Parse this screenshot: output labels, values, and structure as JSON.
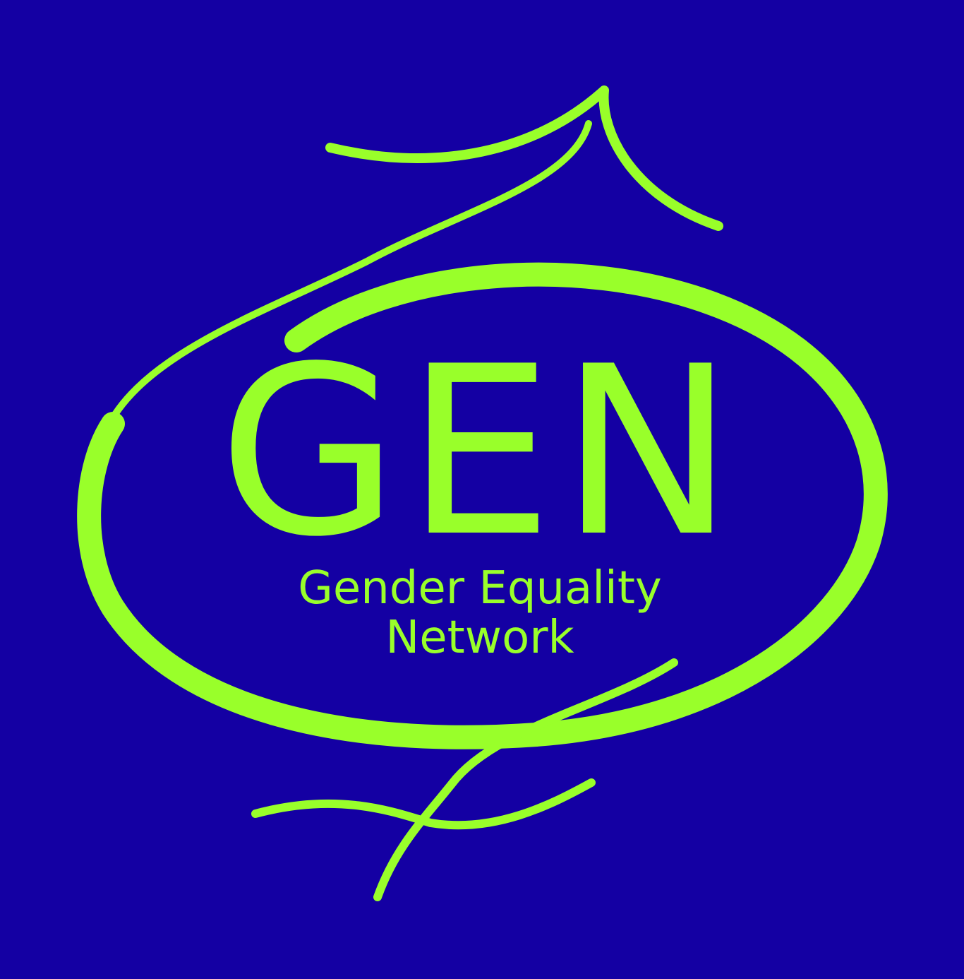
{
  "logo": {
    "acronym": "GEN",
    "line1": "Gender Equality",
    "line2": "Network"
  },
  "colors": {
    "background": "#1400a3",
    "foreground": "#99ff2a"
  }
}
